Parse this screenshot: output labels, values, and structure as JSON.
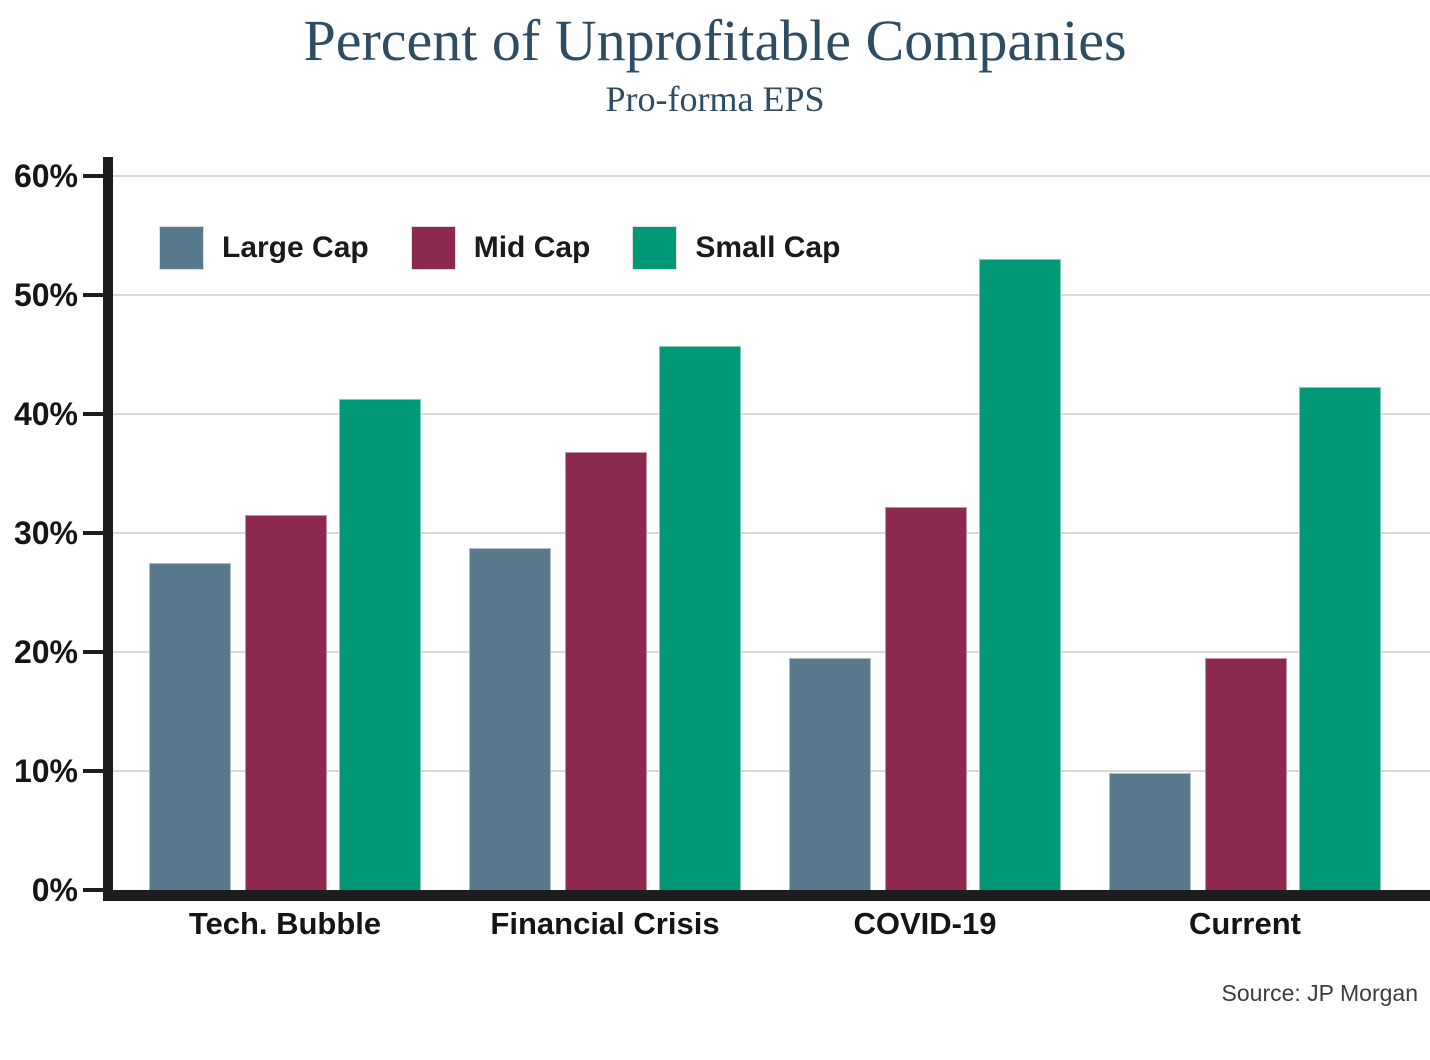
{
  "chart_data": {
    "type": "bar",
    "title": "Percent of Unprofitable Companies",
    "subtitle": "Pro-forma EPS",
    "categories": [
      "Tech. Bubble",
      "Financial Crisis",
      "COVID-19",
      "Current"
    ],
    "series": [
      {
        "name": "Large Cap",
        "color": "#587a8c",
        "values": [
          27.5,
          28.7,
          19.5,
          9.8
        ]
      },
      {
        "name": "Mid Cap",
        "color": "#8c2951",
        "values": [
          31.5,
          36.8,
          32.2,
          19.5
        ]
      },
      {
        "name": "Small Cap",
        "color": "#009877",
        "values": [
          41.3,
          45.7,
          53.0,
          42.3
        ]
      }
    ],
    "xlabel": "",
    "ylabel": "",
    "ylim": [
      0,
      60
    ],
    "ytick_step": 10,
    "ytick_labels": [
      "0%",
      "10%",
      "20%",
      "30%",
      "40%",
      "50%",
      "60%"
    ],
    "grid": "horizontal",
    "legend_position": "top-left",
    "colors": {
      "title": "#2e4d63",
      "axis": "#1d1d1d",
      "gridline": "#d9d9d9",
      "tick_text": "#151515"
    }
  },
  "source_note": "Source: JP Morgan"
}
